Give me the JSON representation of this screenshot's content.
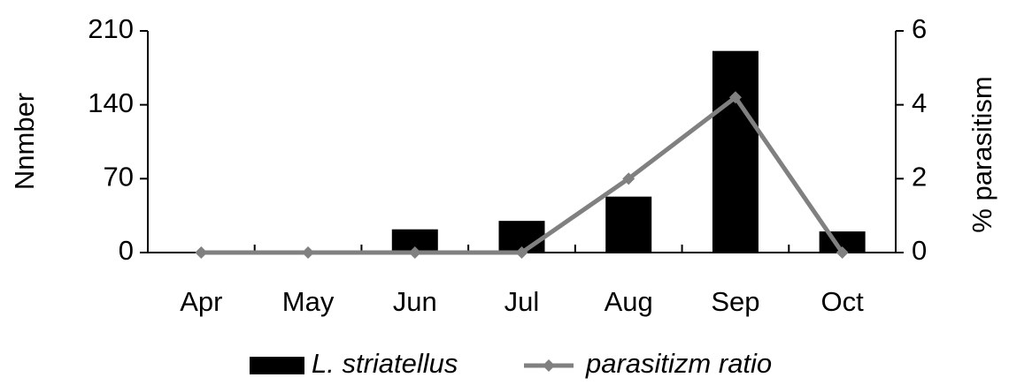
{
  "chart_data": {
    "type": "bar",
    "categories": [
      "Apr",
      "May",
      "Jun",
      "Jul",
      "Aug",
      "Sep",
      "Oct"
    ],
    "series": [
      {
        "name": "L. striatellus",
        "type": "bar",
        "color": "#000000",
        "values": [
          0,
          0,
          22,
          30,
          53,
          191,
          20
        ]
      },
      {
        "name": "parasitizm ratio",
        "type": "line",
        "axis": "y2",
        "color": "#808080",
        "values": [
          0,
          0,
          0,
          0,
          2,
          4.2,
          0
        ]
      }
    ],
    "y_label": "Nnmber",
    "y2_label": "% parasitism",
    "ylim": [
      0,
      210
    ],
    "yticks": [
      0,
      70,
      140,
      210
    ],
    "y2lim": [
      0,
      6
    ],
    "y2ticks": [
      0,
      2,
      4,
      6
    ],
    "legend": "bottom"
  }
}
